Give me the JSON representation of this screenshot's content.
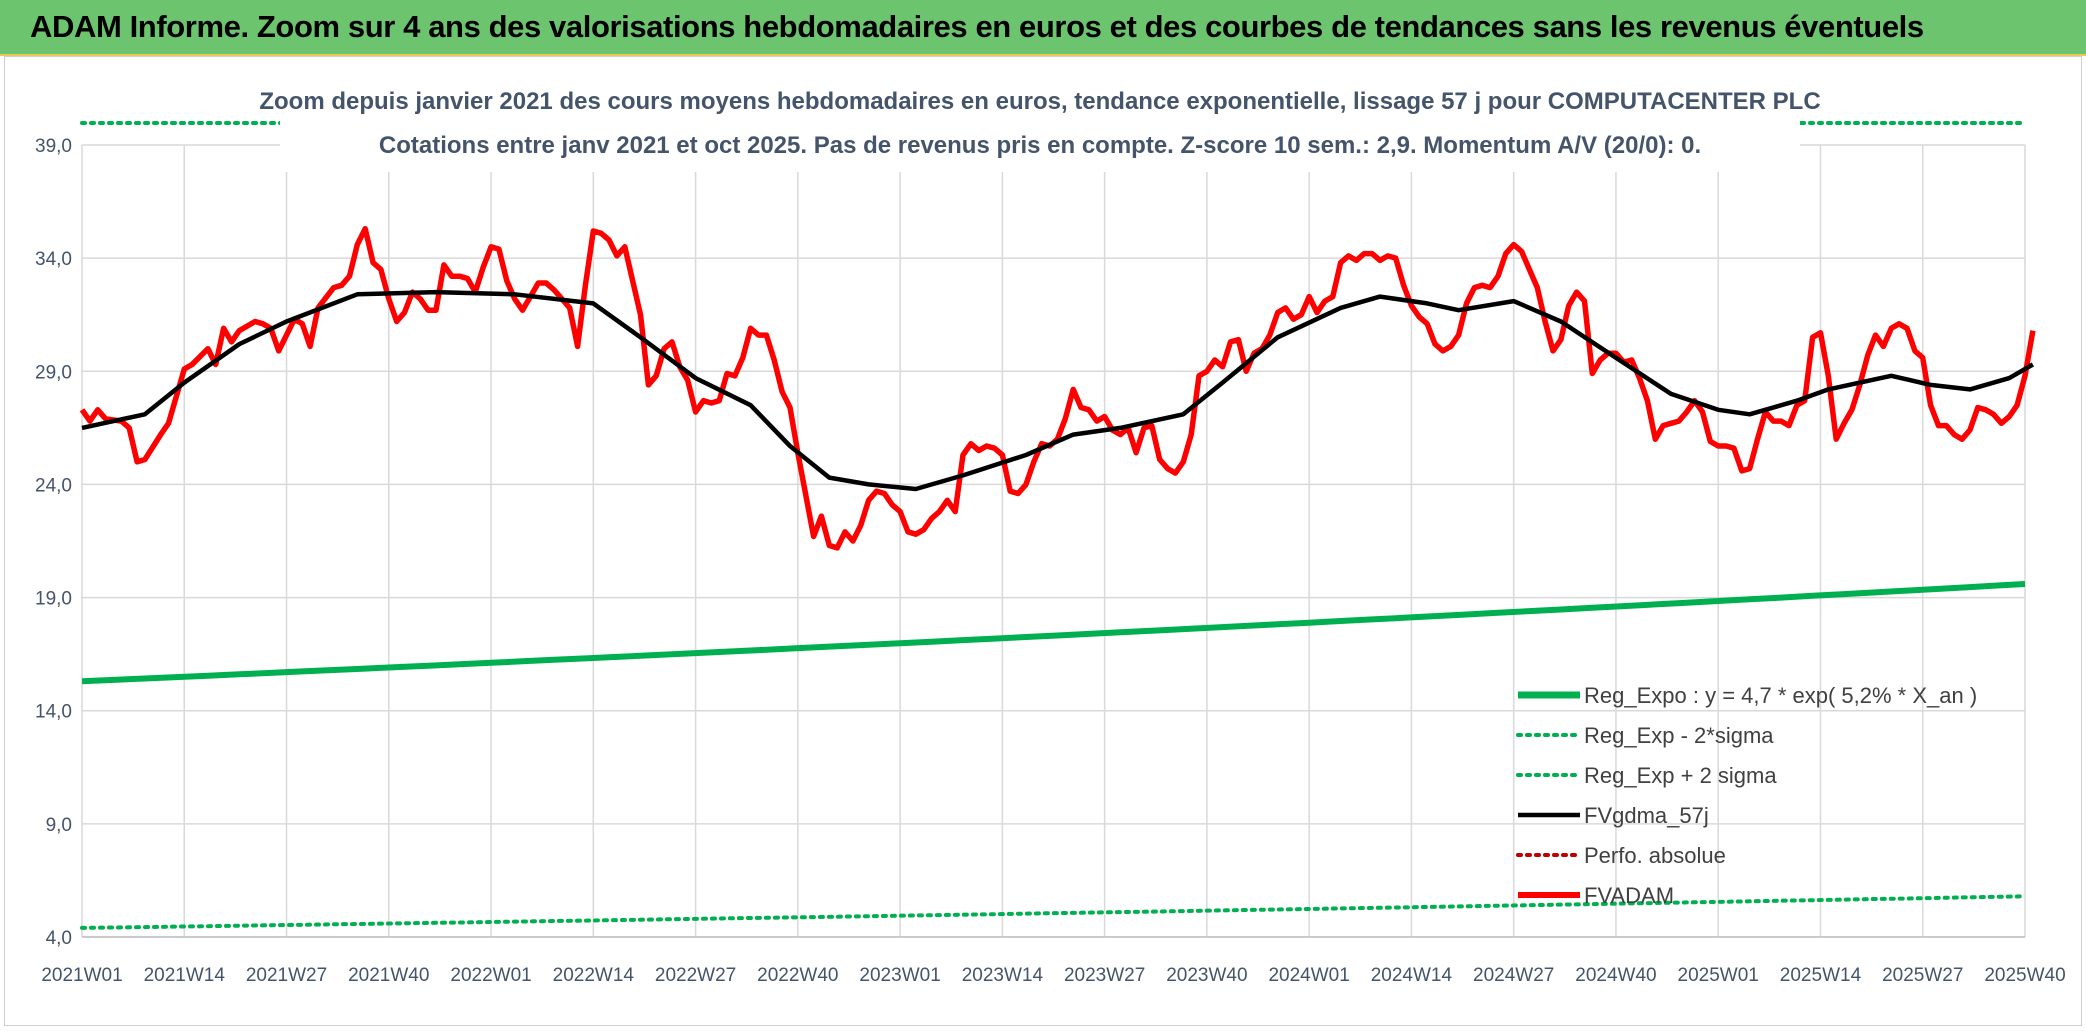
{
  "header": {
    "title": "ADAM Informe. Zoom sur 4 ans des valorisations hebdomadaires en euros et des courbes de tendances sans les revenus éventuels"
  },
  "colors": {
    "banner": "#6cc46f",
    "fvadam": "#ff0000",
    "trend": "#000000",
    "reg": "#00b050",
    "perf": "#c00000",
    "grid": "#d9d9d9"
  },
  "chart_data": {
    "type": "line",
    "title_line1": "Zoom depuis janvier 2021 des cours moyens hebdomadaires en euros, tendance exponentielle, lissage 57 j pour COMPUTACENTER PLC",
    "title_line2": "Cotations entre janv 2021 et oct 2025. Pas de revenus pris en compte. Z-score 10 sem.: 2,9. Momentum A/V (20/0): 0.",
    "xlabel": "",
    "ylabel": "",
    "ylim": [
      4,
      39
    ],
    "week_count": 248,
    "y_ticks": [
      "4,0",
      "9,0",
      "14,0",
      "19,0",
      "24,0",
      "29,0",
      "34,0",
      "39,0"
    ],
    "y_tick_values": [
      4,
      9,
      14,
      19,
      24,
      29,
      34,
      39
    ],
    "x_ticks": [
      {
        "label": "2021W01",
        "index": 0
      },
      {
        "label": "2021W14",
        "index": 13
      },
      {
        "label": "2021W27",
        "index": 26
      },
      {
        "label": "2021W40",
        "index": 39
      },
      {
        "label": "2022W01",
        "index": 52
      },
      {
        "label": "2022W14",
        "index": 65
      },
      {
        "label": "2022W27",
        "index": 78
      },
      {
        "label": "2022W40",
        "index": 91
      },
      {
        "label": "2023W01",
        "index": 104
      },
      {
        "label": "2023W14",
        "index": 117
      },
      {
        "label": "2023W27",
        "index": 130
      },
      {
        "label": "2023W40",
        "index": 143
      },
      {
        "label": "2024W01",
        "index": 156
      },
      {
        "label": "2024W14",
        "index": 169
      },
      {
        "label": "2024W27",
        "index": 182
      },
      {
        "label": "2024W40",
        "index": 195
      },
      {
        "label": "2025W01",
        "index": 208
      },
      {
        "label": "2025W14",
        "index": 221
      },
      {
        "label": "2025W27",
        "index": 234
      },
      {
        "label": "2025W40",
        "index": 247
      }
    ],
    "series": [
      {
        "name": "Reg_Expo : y = 4,7 * exp( 5,2% *  X_an )",
        "style": "solid-thick",
        "color": "#00b050",
        "values": [
          15.3,
          19.6
        ]
      },
      {
        "name": "Reg_Exp - 2*sigma",
        "style": "dotted",
        "color": "#00b050",
        "values": [
          4.4,
          5.8
        ]
      },
      {
        "name": "Reg_Exp + 2 sigma",
        "style": "dotted",
        "color": "#00b050",
        "values": [
          40.0,
          40.0
        ]
      },
      {
        "name": "FVgdma_57j",
        "style": "solid",
        "color": "#000000",
        "points": [
          [
            0,
            26.5
          ],
          [
            8,
            27.1
          ],
          [
            13,
            28.5
          ],
          [
            20,
            30.2
          ],
          [
            26,
            31.2
          ],
          [
            35,
            32.4
          ],
          [
            45,
            32.5
          ],
          [
            55,
            32.4
          ],
          [
            65,
            32.0
          ],
          [
            71,
            30.5
          ],
          [
            78,
            28.7
          ],
          [
            85,
            27.5
          ],
          [
            90,
            25.7
          ],
          [
            95,
            24.3
          ],
          [
            100,
            24.0
          ],
          [
            106,
            23.8
          ],
          [
            112,
            24.4
          ],
          [
            120,
            25.3
          ],
          [
            126,
            26.2
          ],
          [
            132,
            26.5
          ],
          [
            140,
            27.1
          ],
          [
            145,
            28.5
          ],
          [
            152,
            30.5
          ],
          [
            160,
            31.8
          ],
          [
            165,
            32.3
          ],
          [
            171,
            32.0
          ],
          [
            175,
            31.7
          ],
          [
            182,
            32.1
          ],
          [
            188,
            31.2
          ],
          [
            195,
            29.6
          ],
          [
            202,
            28.0
          ],
          [
            208,
            27.3
          ],
          [
            212,
            27.1
          ],
          [
            218,
            27.7
          ],
          [
            222,
            28.2
          ],
          [
            230,
            28.8
          ],
          [
            235,
            28.4
          ],
          [
            240,
            28.2
          ],
          [
            245,
            28.7
          ],
          [
            248,
            29.3
          ]
        ]
      },
      {
        "name": "Perfo. absolue",
        "style": "dotted",
        "color": "#c00000",
        "values": []
      },
      {
        "name": "FVADAM",
        "style": "solid-thick",
        "color": "#ff0000",
        "points": [
          [
            0,
            27.3
          ],
          [
            1,
            26.8
          ],
          [
            2,
            27.3
          ],
          [
            3,
            26.9
          ],
          [
            5,
            26.8
          ],
          [
            6,
            26.5
          ],
          [
            7,
            25.0
          ],
          [
            8,
            25.1
          ],
          [
            10,
            26.2
          ],
          [
            11,
            26.7
          ],
          [
            13,
            29.1
          ],
          [
            14,
            29.3
          ],
          [
            16,
            30.0
          ],
          [
            17,
            29.3
          ],
          [
            18,
            30.9
          ],
          [
            19,
            30.3
          ],
          [
            20,
            30.8
          ],
          [
            22,
            31.2
          ],
          [
            23,
            31.1
          ],
          [
            24,
            30.9
          ],
          [
            25,
            29.9
          ],
          [
            26,
            30.6
          ],
          [
            27,
            31.3
          ],
          [
            28,
            31.1
          ],
          [
            29,
            30.1
          ],
          [
            30,
            31.8
          ],
          [
            32,
            32.7
          ],
          [
            33,
            32.8
          ],
          [
            34,
            33.2
          ],
          [
            35,
            34.6
          ],
          [
            36,
            35.3
          ],
          [
            37,
            33.8
          ],
          [
            38,
            33.5
          ],
          [
            39,
            32.2
          ],
          [
            40,
            31.2
          ],
          [
            41,
            31.6
          ],
          [
            42,
            32.5
          ],
          [
            43,
            32.2
          ],
          [
            44,
            31.7
          ],
          [
            45,
            31.7
          ],
          [
            46,
            33.7
          ],
          [
            47,
            33.2
          ],
          [
            48,
            33.2
          ],
          [
            49,
            33.1
          ],
          [
            50,
            32.5
          ],
          [
            51,
            33.6
          ],
          [
            52,
            34.5
          ],
          [
            53,
            34.4
          ],
          [
            54,
            33.0
          ],
          [
            55,
            32.2
          ],
          [
            56,
            31.7
          ],
          [
            57,
            32.3
          ],
          [
            58,
            32.9
          ],
          [
            59,
            32.9
          ],
          [
            60,
            32.6
          ],
          [
            62,
            31.8
          ],
          [
            63,
            30.1
          ],
          [
            64,
            32.8
          ],
          [
            65,
            35.2
          ],
          [
            66,
            35.1
          ],
          [
            67,
            34.8
          ],
          [
            68,
            34.1
          ],
          [
            69,
            34.5
          ],
          [
            71,
            31.5
          ],
          [
            72,
            28.4
          ],
          [
            73,
            28.8
          ],
          [
            74,
            30.0
          ],
          [
            75,
            30.3
          ],
          [
            76,
            29.2
          ],
          [
            77,
            28.6
          ],
          [
            78,
            27.2
          ],
          [
            79,
            27.7
          ],
          [
            80,
            27.6
          ],
          [
            81,
            27.7
          ],
          [
            82,
            28.9
          ],
          [
            83,
            28.8
          ],
          [
            84,
            29.6
          ],
          [
            85,
            30.9
          ],
          [
            86,
            30.6
          ],
          [
            87,
            30.6
          ],
          [
            88,
            29.5
          ],
          [
            89,
            28.1
          ],
          [
            90,
            27.4
          ],
          [
            91,
            25.4
          ],
          [
            93,
            21.7
          ],
          [
            94,
            22.6
          ],
          [
            95,
            21.3
          ],
          [
            96,
            21.2
          ],
          [
            97,
            21.9
          ],
          [
            98,
            21.5
          ],
          [
            99,
            22.2
          ],
          [
            100,
            23.3
          ],
          [
            101,
            23.7
          ],
          [
            102,
            23.6
          ],
          [
            103,
            23.1
          ],
          [
            104,
            22.8
          ],
          [
            105,
            21.9
          ],
          [
            106,
            21.8
          ],
          [
            107,
            22.0
          ],
          [
            108,
            22.5
          ],
          [
            109,
            22.8
          ],
          [
            110,
            23.3
          ],
          [
            111,
            22.8
          ],
          [
            112,
            25.3
          ],
          [
            113,
            25.8
          ],
          [
            114,
            25.5
          ],
          [
            115,
            25.7
          ],
          [
            116,
            25.6
          ],
          [
            117,
            25.3
          ],
          [
            118,
            23.7
          ],
          [
            119,
            23.6
          ],
          [
            120,
            24.0
          ],
          [
            121,
            25.0
          ],
          [
            122,
            25.8
          ],
          [
            123,
            25.7
          ],
          [
            124,
            26.0
          ],
          [
            125,
            26.9
          ],
          [
            126,
            28.2
          ],
          [
            127,
            27.4
          ],
          [
            128,
            27.3
          ],
          [
            129,
            26.8
          ],
          [
            130,
            27.0
          ],
          [
            131,
            26.4
          ],
          [
            132,
            26.2
          ],
          [
            133,
            26.5
          ],
          [
            134,
            25.4
          ],
          [
            135,
            26.5
          ],
          [
            136,
            26.6
          ],
          [
            137,
            25.1
          ],
          [
            138,
            24.7
          ],
          [
            139,
            24.5
          ],
          [
            140,
            25.0
          ],
          [
            141,
            26.2
          ],
          [
            142,
            28.8
          ],
          [
            143,
            29.0
          ],
          [
            144,
            29.5
          ],
          [
            145,
            29.2
          ],
          [
            146,
            30.3
          ],
          [
            147,
            30.4
          ],
          [
            148,
            29.0
          ],
          [
            149,
            29.8
          ],
          [
            150,
            30.0
          ],
          [
            151,
            30.6
          ],
          [
            152,
            31.6
          ],
          [
            153,
            31.8
          ],
          [
            154,
            31.3
          ],
          [
            155,
            31.5
          ],
          [
            156,
            32.3
          ],
          [
            157,
            31.6
          ],
          [
            158,
            32.1
          ],
          [
            159,
            32.3
          ],
          [
            160,
            33.8
          ],
          [
            161,
            34.1
          ],
          [
            162,
            33.9
          ],
          [
            163,
            34.2
          ],
          [
            164,
            34.2
          ],
          [
            165,
            33.9
          ],
          [
            166,
            34.1
          ],
          [
            167,
            34.0
          ],
          [
            168,
            32.8
          ],
          [
            169,
            31.9
          ],
          [
            170,
            31.4
          ],
          [
            171,
            31.1
          ],
          [
            172,
            30.2
          ],
          [
            173,
            29.9
          ],
          [
            174,
            30.1
          ],
          [
            175,
            30.6
          ],
          [
            176,
            32.0
          ],
          [
            177,
            32.7
          ],
          [
            178,
            32.8
          ],
          [
            179,
            32.7
          ],
          [
            180,
            33.2
          ],
          [
            181,
            34.2
          ],
          [
            182,
            34.6
          ],
          [
            183,
            34.3
          ],
          [
            184,
            33.5
          ],
          [
            185,
            32.7
          ],
          [
            186,
            31.2
          ],
          [
            187,
            29.9
          ],
          [
            188,
            30.4
          ],
          [
            189,
            31.9
          ],
          [
            190,
            32.5
          ],
          [
            191,
            32.1
          ],
          [
            192,
            28.9
          ],
          [
            193,
            29.5
          ],
          [
            194,
            29.8
          ],
          [
            195,
            29.8
          ],
          [
            196,
            29.4
          ],
          [
            197,
            29.5
          ],
          [
            198,
            28.7
          ],
          [
            199,
            27.7
          ],
          [
            200,
            26.0
          ],
          [
            201,
            26.6
          ],
          [
            202,
            26.7
          ],
          [
            203,
            26.8
          ],
          [
            204,
            27.2
          ],
          [
            205,
            27.7
          ],
          [
            206,
            27.2
          ],
          [
            207,
            25.9
          ],
          [
            208,
            25.7
          ],
          [
            209,
            25.7
          ],
          [
            210,
            25.6
          ],
          [
            211,
            24.6
          ],
          [
            212,
            24.7
          ],
          [
            213,
            26.0
          ],
          [
            214,
            27.2
          ],
          [
            215,
            26.8
          ],
          [
            216,
            26.8
          ],
          [
            217,
            26.6
          ],
          [
            218,
            27.5
          ],
          [
            219,
            27.7
          ],
          [
            220,
            30.5
          ],
          [
            221,
            30.7
          ],
          [
            222,
            28.8
          ],
          [
            223,
            26.0
          ],
          [
            224,
            26.7
          ],
          [
            225,
            27.3
          ],
          [
            226,
            28.4
          ],
          [
            227,
            29.7
          ],
          [
            228,
            30.6
          ],
          [
            229,
            30.1
          ],
          [
            230,
            30.9
          ],
          [
            231,
            31.1
          ],
          [
            232,
            30.9
          ],
          [
            233,
            29.9
          ],
          [
            234,
            29.6
          ],
          [
            235,
            27.5
          ],
          [
            236,
            26.6
          ],
          [
            237,
            26.6
          ],
          [
            238,
            26.2
          ],
          [
            239,
            26.0
          ],
          [
            240,
            26.4
          ],
          [
            241,
            27.4
          ],
          [
            242,
            27.3
          ],
          [
            243,
            27.1
          ],
          [
            244,
            26.7
          ],
          [
            245,
            27.0
          ],
          [
            246,
            27.5
          ],
          [
            247,
            28.8
          ],
          [
            248,
            30.8
          ]
        ]
      }
    ],
    "legend": {
      "position": "bottom-right",
      "items": [
        "Reg_Expo : y = 4,7 * exp( 5,2% *  X_an )",
        "Reg_Exp - 2*sigma",
        "Reg_Exp + 2 sigma",
        "FVgdma_57j",
        "Perfo. absolue",
        "FVADAM"
      ]
    },
    "grid": true
  }
}
